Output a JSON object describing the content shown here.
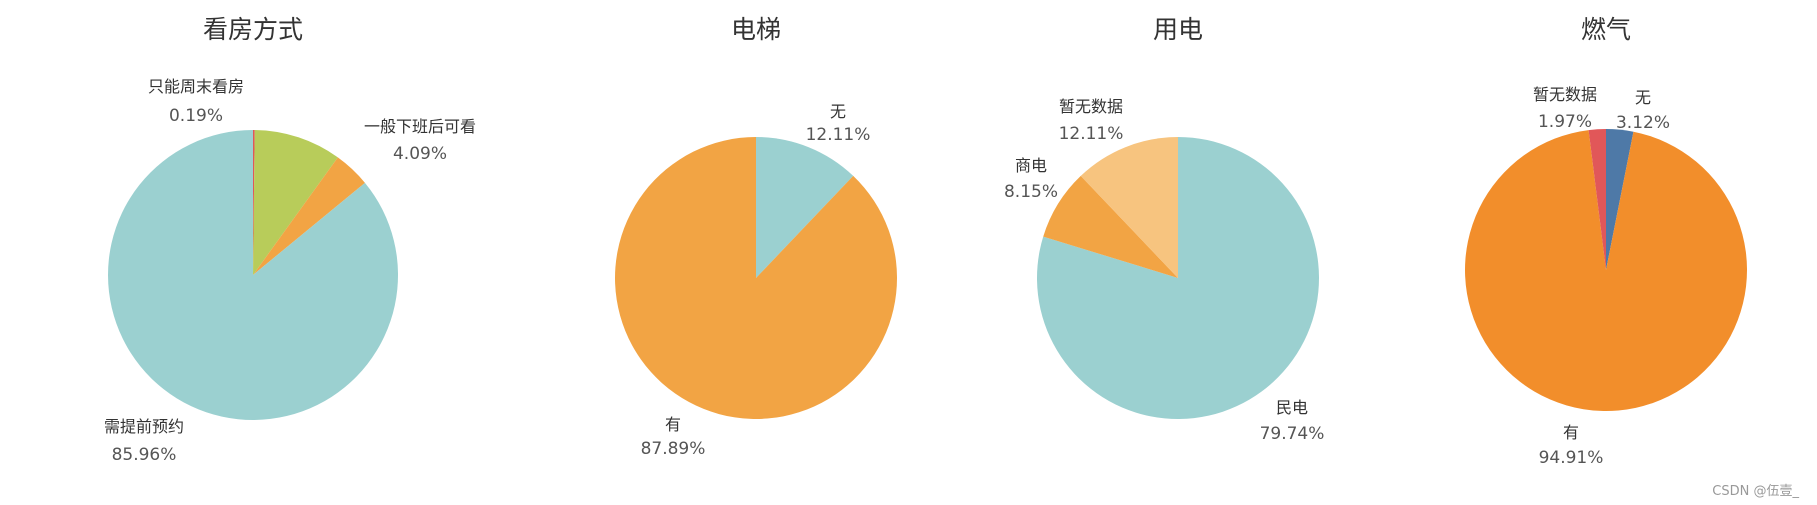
{
  "chart_data": [
    {
      "type": "pie",
      "title": "看房方式",
      "slices": [
        {
          "label": "只能周末看房",
          "pct_label": "0.19%",
          "value": 0.19,
          "color": "#e15759"
        },
        {
          "label": "",
          "pct_label": "",
          "value": 9.76,
          "color": "#b8cc5a"
        },
        {
          "label": "一般下班后可看",
          "pct_label": "4.09%",
          "value": 4.09,
          "color": "#f2a444"
        },
        {
          "label": "需提前预约",
          "pct_label": "85.96%",
          "value": 85.96,
          "color": "#9bd0d0"
        }
      ]
    },
    {
      "type": "pie",
      "title": "电梯",
      "slices": [
        {
          "label": "无",
          "pct_label": "12.11%",
          "value": 12.11,
          "color": "#9bd0d0"
        },
        {
          "label": "有",
          "pct_label": "87.89%",
          "value": 87.89,
          "color": "#f2a444"
        }
      ]
    },
    {
      "type": "pie",
      "title": "用电",
      "slices": [
        {
          "label": "民电",
          "pct_label": "79.74%",
          "value": 79.74,
          "color": "#9bd0d0"
        },
        {
          "label": "商电",
          "pct_label": "8.15%",
          "value": 8.15,
          "color": "#f2a444"
        },
        {
          "label": "暂无数据",
          "pct_label": "12.11%",
          "value": 12.11,
          "color": "#f7c47f"
        }
      ]
    },
    {
      "type": "pie",
      "title": "燃气",
      "slices": [
        {
          "label": "无",
          "pct_label": "3.12%",
          "value": 3.12,
          "color": "#4e79a7"
        },
        {
          "label": "有",
          "pct_label": "94.91%",
          "value": 94.91,
          "color": "#f28e2b"
        },
        {
          "label": "暂无数据",
          "pct_label": "1.97%",
          "value": 1.97,
          "color": "#e15759"
        }
      ]
    }
  ],
  "watermark": "CSDN @伍壹_"
}
